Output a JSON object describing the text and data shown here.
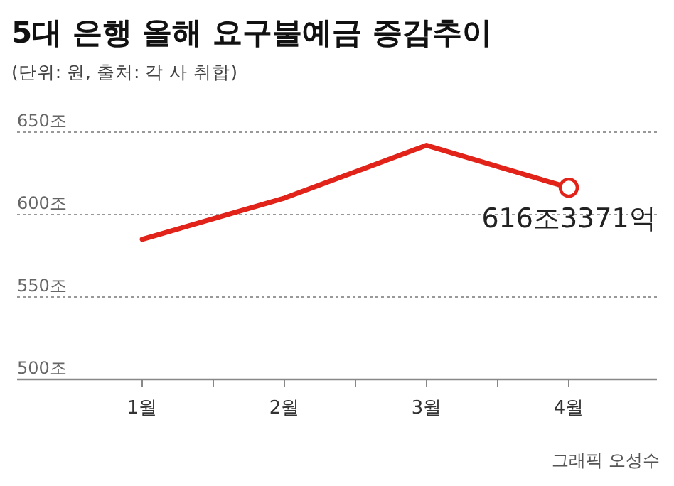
{
  "chart_data": {
    "type": "line",
    "title": "5대 은행 올해 요구불예금 증감추이",
    "subtitle": "(단위: 원, 출처: 각 사 취합)",
    "categories": [
      "1월",
      "2월",
      "3월",
      "4월"
    ],
    "series": [
      {
        "color": "#e2231a",
        "values": [
          585,
          610,
          642,
          616.3371
        ]
      }
    ],
    "ylim": [
      500,
      650
    ],
    "yticks": [
      {
        "value": 500,
        "label": "500조"
      },
      {
        "value": 550,
        "label": "550조"
      },
      {
        "value": 600,
        "label": "600조"
      },
      {
        "value": 650,
        "label": "650조"
      }
    ],
    "grid": "y",
    "marker": "none",
    "line_style": "solid",
    "annotations": [
      {
        "text": "616조3371억",
        "x": "4월",
        "y": 616.3371
      },
      "그래픽 오성수"
    ]
  }
}
